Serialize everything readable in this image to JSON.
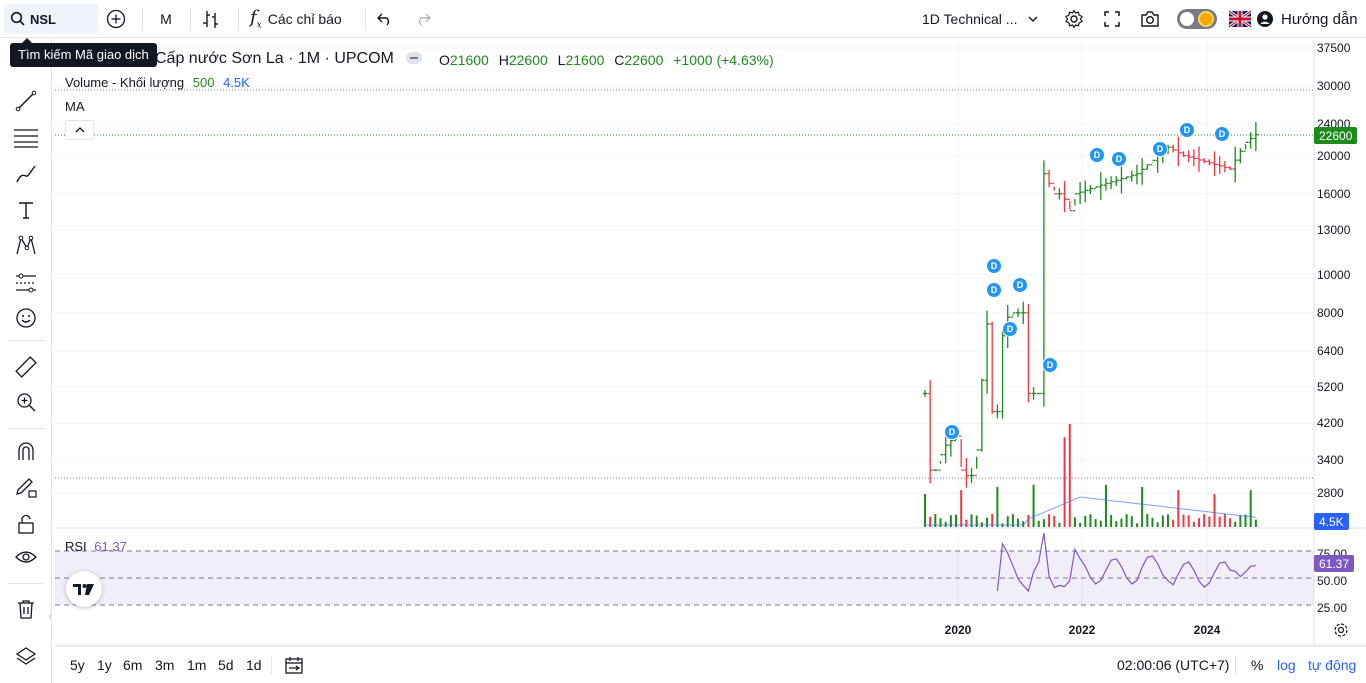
{
  "topbar": {
    "symbol": "NSL",
    "interval": "M",
    "indicators_label": "Các chỉ báo",
    "layout_name": "1D Technical ...",
    "guide_label": "Hướng dẫn"
  },
  "search_tooltip": "Tìm kiếm Mã giao dịch",
  "legend": {
    "title": "Cấp nước Sơn La · 1M · UPCOM",
    "ohlc": {
      "o_label": "O",
      "o": "21600",
      "h_label": "H",
      "h": "22600",
      "l_label": "L",
      "l": "21600",
      "c_label": "C",
      "c": "22600",
      "change": "+1000 (+4.63%)"
    },
    "volume_label": "Volume - Khối lượng",
    "volume_v1": "500",
    "volume_v2": "4.5K",
    "ma_label": "MA",
    "rsi_label": "RSI",
    "rsi_value": "61.37"
  },
  "price_axis": [
    "37500",
    "30000",
    "24000",
    "20000",
    "16000",
    "13000",
    "10000",
    "8000",
    "6400",
    "5200",
    "4200",
    "3400",
    "2800"
  ],
  "price_badge": "22600",
  "volume_badge": "4.5K",
  "rsi_axis": [
    "75.00",
    "50.00",
    "25.00"
  ],
  "rsi_badge": "61.37",
  "time_axis": [
    "2020",
    "2022",
    "2024"
  ],
  "bottombar": {
    "ranges": [
      "5y",
      "1y",
      "6m",
      "3m",
      "1m",
      "5d",
      "1d"
    ],
    "clock": "02:00:06 (UTC+7)",
    "percent": "%",
    "log": "log",
    "auto": "tự động"
  },
  "dividend_marker": "D",
  "colors": {
    "up": "#089981",
    "up_dark": "#1e8a1e",
    "down": "#f23645",
    "accent": "#2962ff",
    "rsi": "#7e57c2"
  },
  "chart_data": {
    "type": "bar",
    "scale": "log",
    "period": "monthly",
    "series": [
      {
        "name": "Volume - Khối lượng",
        "type": "bar"
      },
      {
        "name": "MA",
        "type": "line"
      },
      {
        "name": "RSI",
        "type": "line",
        "range": [
          0,
          100
        ],
        "bands": [
          25,
          50,
          75
        ],
        "last": 61.37
      }
    ],
    "price_approx": [
      {
        "date": "2019-07",
        "close": 5000
      },
      {
        "date": "2019-08",
        "close": 3200
      },
      {
        "date": "2019-09",
        "close": 3200
      },
      {
        "date": "2019-10",
        "close": 3500
      },
      {
        "date": "2019-11",
        "close": 3700
      },
      {
        "date": "2019-12",
        "close": 3800
      },
      {
        "date": "2020-01",
        "close": 3900
      },
      {
        "date": "2020-02",
        "close": 3200
      },
      {
        "date": "2020-03",
        "close": 3100
      },
      {
        "date": "2020-04",
        "close": 3100
      },
      {
        "date": "2020-05",
        "close": 3600
      },
      {
        "date": "2020-06",
        "close": 5400
      },
      {
        "date": "2020-07",
        "close": 7500
      },
      {
        "date": "2020-08",
        "close": 4500
      },
      {
        "date": "2020-09",
        "close": 4500
      },
      {
        "date": "2020-10",
        "close": 7000
      },
      {
        "date": "2020-11",
        "close": 7800
      },
      {
        "date": "2020-12",
        "close": 8000
      },
      {
        "date": "2021-01",
        "close": 8000
      },
      {
        "date": "2021-02",
        "close": 8000
      },
      {
        "date": "2021-03",
        "close": 5000
      },
      {
        "date": "2021-04",
        "close": 5000
      },
      {
        "date": "2021-05",
        "close": 5000
      },
      {
        "date": "2021-06",
        "close": 18000
      },
      {
        "date": "2021-07",
        "close": 17000
      },
      {
        "date": "2021-08",
        "close": 16000
      },
      {
        "date": "2021-09",
        "close": 16000
      },
      {
        "date": "2021-10",
        "close": 15500
      },
      {
        "date": "2021-11",
        "close": 14500
      },
      {
        "date": "2021-12",
        "close": 16000
      },
      {
        "date": "2022-06",
        "close": 17000
      },
      {
        "date": "2022-12",
        "close": 18000
      },
      {
        "date": "2023-06",
        "close": 21000
      },
      {
        "date": "2023-09",
        "close": 20000
      },
      {
        "date": "2023-12",
        "close": 19500
      },
      {
        "date": "2024-06",
        "close": 18500
      },
      {
        "date": "2024-09",
        "close": 21600
      },
      {
        "date": "2024-11",
        "close": 22600
      }
    ]
  }
}
